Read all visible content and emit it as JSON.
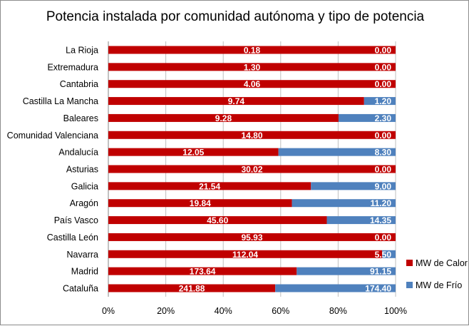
{
  "chart_data": {
    "type": "bar",
    "orientation": "horizontal",
    "stacking": "percent",
    "title": "Potencia instalada por comunidad autónoma y tipo de potencia",
    "categories": [
      "La Rioja",
      "Extremadura",
      "Cantabria",
      "Castilla La Mancha",
      "Baleares",
      "Comunidad Valenciana",
      "Andalucía",
      "Asturias",
      "Galicia",
      "Aragón",
      "País Vasco",
      "Castilla León",
      "Navarra",
      "Madrid",
      "Cataluña"
    ],
    "series": [
      {
        "name": "MW de Calor",
        "color": "#c00000",
        "values": [
          0.18,
          1.3,
          4.06,
          9.74,
          9.28,
          14.8,
          12.05,
          30.02,
          21.54,
          19.84,
          45.6,
          95.93,
          112.04,
          173.64,
          241.88
        ],
        "labels": [
          "0.18",
          "1.30",
          "4.06",
          "9.74",
          "9.28",
          "14.80",
          "12.05",
          "30.02",
          "21.54",
          "19.84",
          "45.60",
          "95.93",
          "112.04",
          "173.64",
          "241.88"
        ]
      },
      {
        "name": "MW de Frío",
        "color": "#4f81bd",
        "values": [
          0.0,
          0.0,
          0.0,
          1.2,
          2.3,
          0.0,
          8.3,
          0.0,
          9.0,
          11.2,
          14.35,
          0.0,
          5.5,
          91.15,
          174.4
        ],
        "labels": [
          "0.00",
          "0.00",
          "0.00",
          "1.20",
          "2.30",
          "0.00",
          "8.30",
          "0.00",
          "9.00",
          "11.20",
          "14.35",
          "0.00",
          "5.50",
          "91.15",
          "174.40"
        ]
      }
    ],
    "x_ticks": [
      "0%",
      "20%",
      "40%",
      "60%",
      "80%",
      "100%"
    ],
    "xlim": [
      0,
      100
    ],
    "grid": "vertical",
    "legend_position": "right"
  }
}
